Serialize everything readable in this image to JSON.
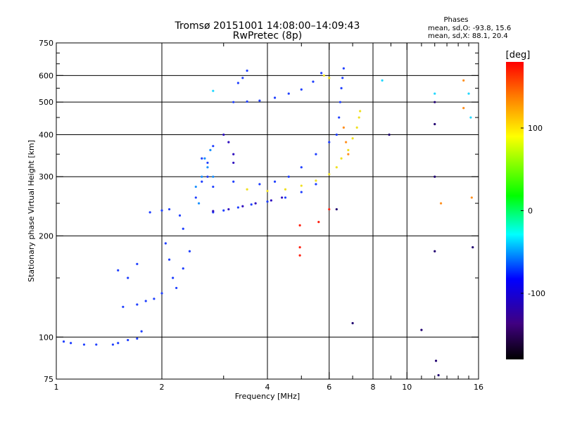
{
  "chart_data": {
    "type": "scatter",
    "title": "Tromsø 20151001 14:08:00–14:09:43",
    "subtitle": "RwPretec (8p)",
    "stats": {
      "heading": "Phases",
      "line_o": "mean, sd,O: -93.8, 15.6",
      "line_x": "mean, sd,X:  88.1, 20.4"
    },
    "xlabel": "Frequency [MHz]",
    "ylabel": "Stationary phase Virtual Height [km]",
    "x_scale": "log",
    "y_scale": "log",
    "xlim": [
      1,
      16
    ],
    "ylim": [
      75,
      750
    ],
    "x_ticks": [
      1,
      2,
      4,
      6,
      8,
      10,
      16
    ],
    "x_tick_labels": [
      "1",
      "2",
      "4",
      "6",
      "8",
      "10",
      "16"
    ],
    "x_minor_ticks": [
      3,
      5,
      7,
      9,
      11,
      12,
      13,
      14,
      15
    ],
    "y_ticks": [
      75,
      100,
      200,
      300,
      400,
      500,
      600,
      750
    ],
    "y_tick_labels": [
      "75",
      "100",
      "200",
      "300",
      "400",
      "500",
      "600",
      "750"
    ],
    "y_minor_ticks": [
      150,
      250,
      350,
      450,
      550,
      650,
      700
    ],
    "grid_x": [
      2,
      4,
      6,
      8,
      10
    ],
    "grid_y": [
      100,
      200,
      300,
      400,
      500,
      600
    ],
    "grid": true,
    "colorbar": {
      "label": "[deg]",
      "range": [
        -180,
        180
      ],
      "ticks": [
        100,
        0,
        -100
      ],
      "tick_labels": [
        "100",
        "0",
        "-100"
      ]
    },
    "series": [
      {
        "phase": -100,
        "color": "#2040ff",
        "points": [
          [
            1.05,
            97
          ],
          [
            1.1,
            96
          ],
          [
            1.2,
            95
          ],
          [
            1.3,
            95
          ],
          [
            1.45,
            95
          ],
          [
            1.5,
            96
          ],
          [
            1.6,
            98
          ],
          [
            1.7,
            99
          ],
          [
            1.75,
            104
          ],
          [
            1.5,
            158
          ],
          [
            1.6,
            150
          ],
          [
            1.7,
            165
          ],
          [
            1.55,
            123
          ],
          [
            1.7,
            125
          ],
          [
            1.8,
            128
          ],
          [
            1.9,
            130
          ],
          [
            2.0,
            135
          ],
          [
            1.85,
            235
          ],
          [
            2.0,
            238
          ],
          [
            2.1,
            240
          ],
          [
            2.05,
            190
          ],
          [
            2.1,
            170
          ],
          [
            2.15,
            150
          ],
          [
            2.2,
            140
          ],
          [
            2.3,
            160
          ],
          [
            2.4,
            180
          ],
          [
            2.3,
            210
          ],
          [
            2.25,
            230
          ],
          [
            2.5,
            260
          ],
          [
            2.6,
            290
          ],
          [
            2.7,
            330
          ],
          [
            2.8,
            370
          ],
          [
            2.6,
            340
          ],
          [
            2.7,
            300
          ],
          [
            2.8,
            280
          ],
          [
            2.8,
            235
          ],
          [
            3.0,
            238
          ],
          [
            3.3,
            243
          ],
          [
            3.6,
            248
          ],
          [
            4.0,
            253
          ],
          [
            4.5,
            260
          ],
          [
            5.0,
            270
          ],
          [
            5.5,
            285
          ],
          [
            3.2,
            500
          ],
          [
            3.5,
            502
          ],
          [
            3.8,
            505
          ],
          [
            4.2,
            515
          ],
          [
            4.6,
            530
          ],
          [
            5.0,
            545
          ],
          [
            5.4,
            575
          ],
          [
            5.7,
            610
          ],
          [
            3.3,
            570
          ],
          [
            3.4,
            590
          ],
          [
            3.5,
            620
          ],
          [
            3.2,
            290
          ],
          [
            3.8,
            285
          ],
          [
            4.2,
            290
          ],
          [
            4.6,
            300
          ],
          [
            5.0,
            320
          ],
          [
            5.5,
            350
          ],
          [
            6.0,
            380
          ],
          [
            6.3,
            400
          ],
          [
            6.4,
            450
          ],
          [
            6.45,
            500
          ],
          [
            6.5,
            550
          ],
          [
            6.55,
            590
          ],
          [
            6.6,
            630
          ]
        ]
      },
      {
        "phase": -120,
        "color": "#3010c0",
        "points": [
          [
            2.8,
            237
          ],
          [
            3.1,
            240
          ],
          [
            3.4,
            245
          ],
          [
            3.7,
            250
          ],
          [
            4.1,
            255
          ],
          [
            4.4,
            260
          ],
          [
            3.0,
            400
          ],
          [
            3.1,
            380
          ],
          [
            3.2,
            350
          ],
          [
            3.2,
            330
          ]
        ]
      },
      {
        "phase": -80,
        "color": "#1890ff",
        "points": [
          [
            2.5,
            280
          ],
          [
            2.6,
            300
          ],
          [
            2.7,
            320
          ],
          [
            2.8,
            300
          ],
          [
            2.65,
            340
          ],
          [
            2.75,
            360
          ],
          [
            2.55,
            250
          ]
        ]
      },
      {
        "phase": 100,
        "color": "#f0e020",
        "points": [
          [
            3.5,
            275
          ],
          [
            4.0,
            272
          ],
          [
            4.5,
            275
          ],
          [
            5.0,
            282
          ],
          [
            5.5,
            292
          ],
          [
            6.0,
            305
          ],
          [
            6.3,
            320
          ],
          [
            6.5,
            340
          ],
          [
            6.8,
            360
          ],
          [
            7.0,
            390
          ],
          [
            7.2,
            420
          ],
          [
            7.3,
            450
          ],
          [
            7.35,
            470
          ],
          [
            6.0,
            590
          ],
          [
            5.8,
            600
          ]
        ]
      },
      {
        "phase": 140,
        "color": "#ff9020",
        "points": [
          [
            6.6,
            420
          ],
          [
            6.7,
            380
          ],
          [
            6.8,
            350
          ],
          [
            14.5,
            580
          ],
          [
            14.5,
            480
          ],
          [
            12.5,
            250
          ],
          [
            15.3,
            260
          ]
        ]
      },
      {
        "phase": 170,
        "color": "#ff2010",
        "points": [
          [
            4.95,
            185
          ],
          [
            4.95,
            175
          ],
          [
            4.95,
            215
          ],
          [
            5.6,
            220
          ],
          [
            6.0,
            240
          ]
        ]
      },
      {
        "phase": -40,
        "color": "#20d8ff",
        "points": [
          [
            2.8,
            540
          ],
          [
            8.5,
            580
          ],
          [
            15.0,
            530
          ],
          [
            15.2,
            450
          ],
          [
            12.0,
            530
          ]
        ]
      },
      {
        "phase": -150,
        "color": "#200070",
        "points": [
          [
            8.9,
            400
          ],
          [
            12.0,
            500
          ],
          [
            12.0,
            430
          ],
          [
            12.0,
            300
          ],
          [
            15.4,
            185
          ],
          [
            12.0,
            180
          ],
          [
            12.1,
            85
          ],
          [
            11.0,
            105
          ],
          [
            12.3,
            77
          ],
          [
            7.0,
            110
          ],
          [
            6.3,
            240
          ]
        ]
      }
    ]
  }
}
